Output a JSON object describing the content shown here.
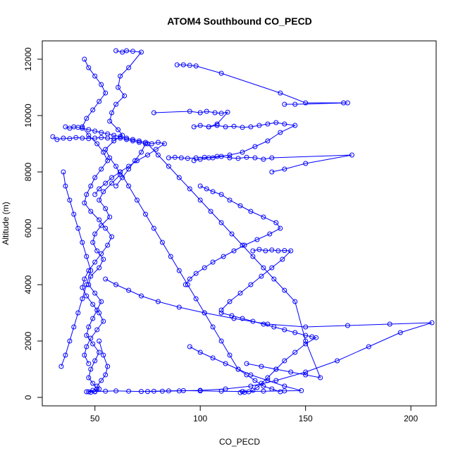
{
  "chart_data": {
    "type": "line",
    "title": "ATOM4 Southbound CO_PECD",
    "xlabel": "CO_PECD",
    "ylabel": "Altitude (m)",
    "xlim": [
      25,
      212
    ],
    "ylim": [
      -300,
      12650
    ],
    "x_ticks": [
      50,
      100,
      150,
      200
    ],
    "y_ticks": [
      0,
      2000,
      4000,
      6000,
      8000,
      10000,
      12000
    ],
    "grid": false,
    "series_color": "#0000ff",
    "markers": "open-circle",
    "series": [
      {
        "x": [
          60,
          63,
          65,
          68,
          72,
          66,
          62,
          61,
          64,
          60,
          58,
          57,
          61,
          63,
          59,
          55,
          57,
          60,
          62,
          58,
          54,
          52,
          55,
          57,
          53,
          50,
          49,
          51,
          54,
          52,
          48,
          47,
          50,
          53,
          51,
          49,
          47,
          46,
          49,
          52,
          50,
          48,
          47,
          49,
          51,
          50,
          48,
          47,
          49,
          52,
          51,
          53,
          55,
          56,
          54,
          52
        ],
        "y": [
          12300,
          12250,
          12300,
          12280,
          12250,
          11700,
          11400,
          11000,
          10700,
          10400,
          10100,
          9800,
          9500,
          9300,
          9100,
          8800,
          8500,
          8200,
          7900,
          7600,
          7300,
          7000,
          6700,
          6400,
          6100,
          5800,
          5500,
          5200,
          4900,
          4600,
          4300,
          4000,
          3700,
          3400,
          3100,
          2800,
          2500,
          2200,
          1900,
          1600,
          1300,
          1000,
          700,
          500,
          300,
          200,
          180,
          200,
          250,
          300,
          400,
          600,
          800,
          1100,
          1500,
          2000
        ]
      },
      {
        "x": [
          45,
          47,
          50,
          53,
          55,
          52,
          49,
          46,
          44,
          47,
          51,
          54,
          56,
          53,
          50,
          48,
          46,
          45,
          48,
          52,
          55,
          58,
          56,
          53,
          50,
          47,
          45,
          44,
          46,
          49,
          52,
          54,
          51,
          48,
          46,
          45,
          47
        ],
        "y": [
          12000,
          11700,
          11400,
          11100,
          10800,
          10500,
          10200,
          9900,
          9600,
          9300,
          9000,
          8700,
          8400,
          8100,
          7800,
          7500,
          7200,
          6900,
          6600,
          6300,
          6000,
          5700,
          5400,
          5100,
          4800,
          4500,
          4200,
          3900,
          3600,
          3300,
          3000,
          2700,
          2400,
          2100,
          1800,
          1500,
          1200
        ]
      },
      {
        "x": [
          36,
          38,
          40,
          42,
          44,
          47,
          50,
          53,
          56,
          59,
          62,
          65,
          68,
          71,
          74,
          77,
          80,
          83,
          79,
          75,
          70,
          66,
          62,
          58,
          55,
          52,
          50
        ],
        "y": [
          9600,
          9550,
          9600,
          9580,
          9550,
          9500,
          9450,
          9400,
          9350,
          9300,
          9250,
          9200,
          9150,
          9100,
          9050,
          9000,
          9050,
          9000,
          8800,
          8600,
          8400,
          8200,
          8000,
          7800,
          7600,
          7400,
          7200
        ]
      },
      {
        "x": [
          30,
          32,
          35,
          38,
          41,
          44,
          47,
          50,
          53,
          56,
          59,
          62,
          65,
          68,
          71,
          74,
          72,
          69,
          66,
          63,
          60
        ],
        "y": [
          9250,
          9150,
          9200,
          9180,
          9220,
          9200,
          9180,
          9200,
          9220,
          9200,
          9180,
          9200,
          9150,
          9100,
          9050,
          9000,
          8700,
          8400,
          8100,
          7800,
          7500
        ]
      },
      {
        "x": [
          89,
          92,
          95,
          98,
          110,
          138,
          150,
          168,
          170,
          145,
          140
        ],
        "y": [
          11800,
          11800,
          11780,
          11760,
          11500,
          10800,
          10450,
          10450,
          10450,
          10400,
          10400
        ]
      },
      {
        "x": [
          78,
          95,
          100,
          103,
          107,
          110,
          113,
          108,
          104,
          100,
          97
        ],
        "y": [
          10100,
          10150,
          10100,
          10150,
          10100,
          10080,
          10120,
          9700,
          9600,
          9650,
          9600
        ]
      },
      {
        "x": [
          104,
          108,
          112,
          116,
          120,
          124,
          128,
          132,
          136,
          140,
          145,
          138,
          132,
          126,
          120,
          114,
          108,
          104,
          100,
          97
        ],
        "y": [
          9600,
          9650,
          9600,
          9620,
          9580,
          9600,
          9650,
          9700,
          9750,
          9700,
          9650,
          9400,
          9100,
          8900,
          8700,
          8600,
          8550,
          8500,
          8450,
          8400
        ]
      },
      {
        "x": [
          85,
          88,
          91,
          94,
          98,
          102,
          106,
          110,
          114,
          118,
          122,
          126,
          130,
          134,
          172,
          150,
          140,
          134
        ],
        "y": [
          8500,
          8520,
          8500,
          8480,
          8500,
          8520,
          8500,
          8550,
          8500,
          8480,
          8520,
          8500,
          8450,
          8500,
          8600,
          8300,
          8100,
          8000
        ]
      },
      {
        "x": [
          100,
          103,
          106,
          110,
          114,
          119,
          124,
          130,
          136,
          138,
          133,
          127,
          121,
          116,
          111,
          106,
          102,
          98,
          95,
          93
        ],
        "y": [
          7500,
          7400,
          7300,
          7200,
          7000,
          6800,
          6600,
          6400,
          6200,
          6000,
          5800,
          5600,
          5400,
          5200,
          5000,
          4800,
          4600,
          4400,
          4200,
          4000
        ]
      },
      {
        "x": [
          125,
          128,
          131,
          134,
          137,
          140,
          143,
          139,
          134,
          129,
          124,
          119,
          114,
          110
        ],
        "y": [
          5200,
          5250,
          5200,
          5230,
          5200,
          5210,
          5200,
          4900,
          4600,
          4300,
          4000,
          3700,
          3400,
          3100
        ]
      },
      {
        "x": [
          55,
          60,
          66,
          72,
          80,
          90,
          102,
          116,
          132,
          150,
          170,
          190,
          210,
          195,
          180,
          165,
          150,
          136,
          124,
          112,
          100,
          90,
          82,
          75
        ],
        "y": [
          4200,
          4000,
          3800,
          3600,
          3400,
          3200,
          3000,
          2800,
          2600,
          2500,
          2550,
          2600,
          2650,
          2300,
          1800,
          1300,
          900,
          600,
          400,
          300,
          250,
          230,
          220,
          210
        ]
      },
      {
        "x": [
          110,
          115,
          120,
          125,
          130,
          135,
          140,
          145,
          150,
          153,
          155,
          150,
          145,
          140,
          136,
          132,
          129,
          127,
          125,
          123,
          121,
          119
        ],
        "y": [
          3000,
          2900,
          2800,
          2700,
          2600,
          2500,
          2400,
          2300,
          2200,
          2150,
          2120,
          1900,
          1600,
          1300,
          1000,
          700,
          500,
          350,
          250,
          200,
          180,
          170
        ]
      },
      {
        "x": [
          46,
          50,
          55,
          60,
          66,
          72,
          78,
          85,
          92,
          100,
          110,
          120,
          130,
          140,
          148,
          140,
          132,
          124,
          118,
          112,
          106,
          100,
          95
        ],
        "y": [
          200,
          210,
          220,
          230,
          220,
          210,
          220,
          230,
          240,
          230,
          220,
          210,
          220,
          230,
          240,
          400,
          600,
          800,
          1000,
          1200,
          1400,
          1600,
          1800
        ]
      },
      {
        "x": [
          34,
          36,
          38,
          40,
          42,
          44,
          46,
          48,
          46,
          44,
          42,
          40,
          38,
          36,
          35
        ],
        "y": [
          1100,
          1500,
          2000,
          2500,
          3000,
          3500,
          4000,
          4500,
          5000,
          5500,
          6000,
          6500,
          7000,
          7500,
          8000
        ]
      },
      {
        "x": [
          62,
          66,
          70,
          74,
          78,
          82,
          86,
          90,
          94,
          98,
          102,
          106,
          110,
          114,
          118,
          122,
          126,
          130,
          134,
          138
        ],
        "y": [
          8000,
          7500,
          7000,
          6500,
          6000,
          5500,
          5000,
          4500,
          4000,
          3500,
          3000,
          2500,
          2000,
          1500,
          1000,
          800,
          600,
          400,
          300,
          200
        ]
      },
      {
        "x": [
          75,
          80,
          85,
          90,
          95,
          100,
          105,
          110,
          115,
          120,
          125,
          130,
          135,
          140,
          145,
          150,
          157,
          150,
          143,
          136,
          129,
          122
        ],
        "y": [
          9000,
          8600,
          8200,
          7800,
          7400,
          7000,
          6600,
          6200,
          5800,
          5400,
          5000,
          4600,
          4200,
          3800,
          3400,
          2000,
          700,
          800,
          900,
          1000,
          1100,
          1200
        ]
      }
    ]
  }
}
